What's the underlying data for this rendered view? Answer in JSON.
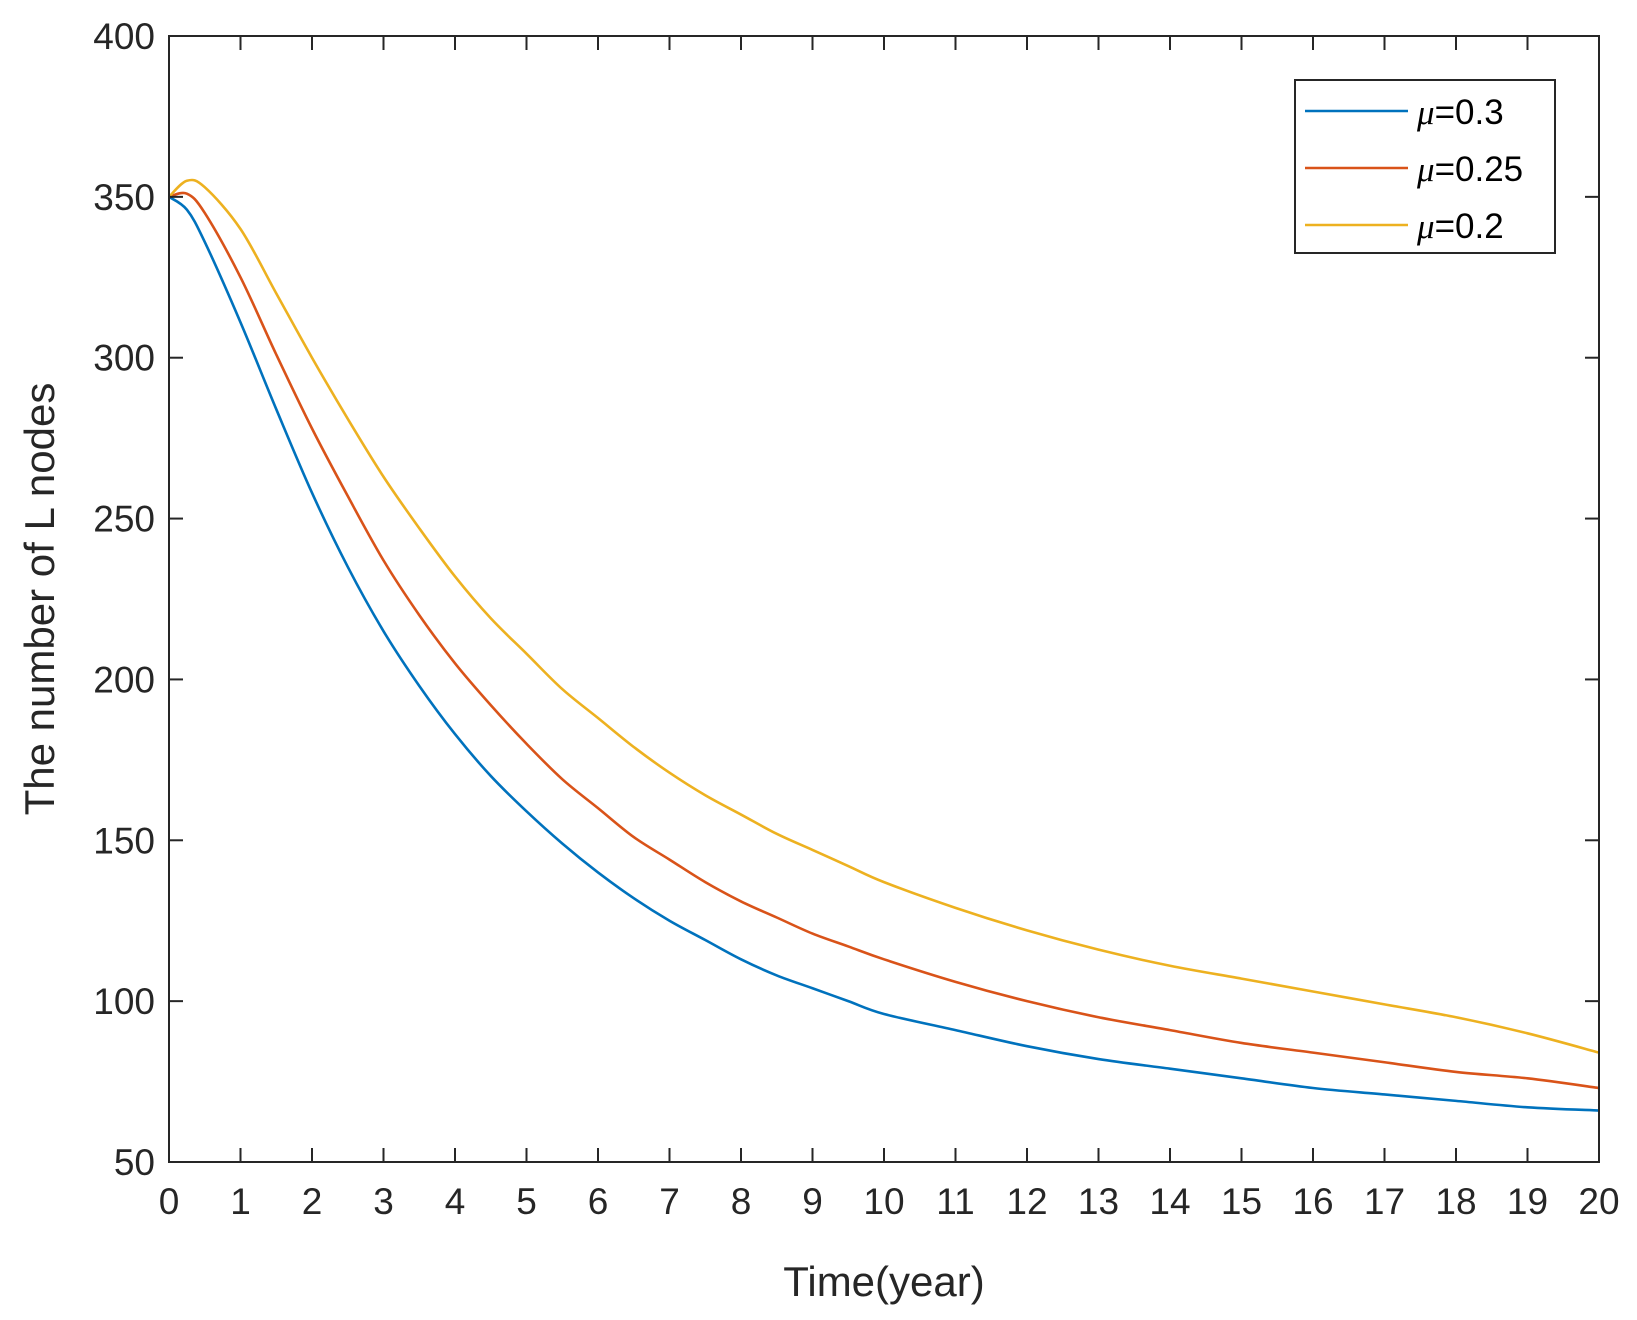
{
  "chart_data": {
    "type": "line",
    "xlabel": "Time(year)",
    "ylabel": "The number of L nodes",
    "xlim": [
      0,
      20
    ],
    "ylim": [
      50,
      400
    ],
    "xticks": [
      0,
      1,
      2,
      3,
      4,
      5,
      6,
      7,
      8,
      9,
      10,
      11,
      12,
      13,
      14,
      15,
      16,
      17,
      18,
      19,
      20
    ],
    "yticks": [
      50,
      100,
      150,
      200,
      250,
      300,
      350,
      400
    ],
    "grid": false,
    "legend_position": "top-right",
    "x": [
      0,
      0.25,
      0.5,
      1,
      1.5,
      2,
      2.5,
      3,
      3.5,
      4,
      4.5,
      5,
      5.5,
      6,
      6.5,
      7,
      7.5,
      8,
      8.5,
      9,
      9.5,
      10,
      11,
      12,
      13,
      14,
      15,
      16,
      17,
      18,
      19,
      20
    ],
    "series": [
      {
        "name": "μ=0.3",
        "legend_symbol": "μ",
        "legend_value": "=0.3",
        "color": "#0072BD",
        "values": [
          350,
          346,
          336,
          311,
          284,
          258,
          235,
          215,
          198,
          183,
          170,
          159,
          149,
          140,
          132,
          125,
          119,
          113,
          108,
          104,
          100,
          96,
          91,
          86,
          82,
          79,
          76,
          73,
          71,
          69,
          67,
          66
        ]
      },
      {
        "name": "μ=0.25",
        "legend_symbol": "μ",
        "legend_value": "=0.25",
        "color": "#D95319",
        "values": [
          350,
          351,
          345,
          325,
          301,
          278,
          257,
          237,
          220,
          205,
          192,
          180,
          169,
          160,
          151,
          144,
          137,
          131,
          126,
          121,
          117,
          113,
          106,
          100,
          95,
          91,
          87,
          84,
          81,
          78,
          76,
          73
        ]
      },
      {
        "name": "μ=0.2",
        "legend_symbol": "μ",
        "legend_value": "=0.2",
        "color": "#EDB120",
        "values": [
          350,
          355,
          353,
          340,
          320,
          300,
          281,
          263,
          247,
          232,
          219,
          208,
          197,
          188,
          179,
          171,
          164,
          158,
          152,
          147,
          142,
          137,
          129,
          122,
          116,
          111,
          107,
          103,
          99,
          95,
          90,
          84
        ]
      }
    ]
  }
}
